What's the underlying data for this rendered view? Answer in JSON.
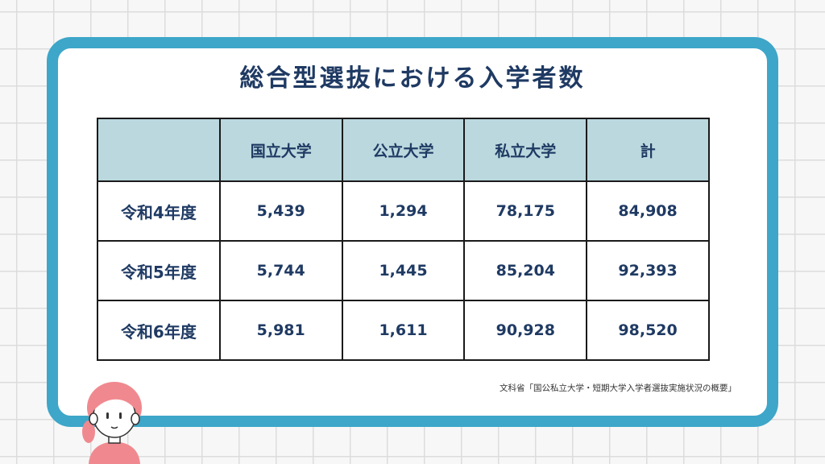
{
  "title": "総合型選抜における入学者数",
  "table": {
    "headers": [
      "",
      "国立大学",
      "公立大学",
      "私立大学",
      "計"
    ],
    "rows": [
      {
        "label": "令和4年度",
        "values": [
          "5,439",
          "1,294",
          "78,175",
          "84,908"
        ]
      },
      {
        "label": "令和5年度",
        "values": [
          "5,744",
          "1,445",
          "85,204",
          "92,393"
        ]
      },
      {
        "label": "令和6年度",
        "values": [
          "5,981",
          "1,611",
          "90,928",
          "98,520"
        ]
      }
    ]
  },
  "source": "文科省「国公私立大学・短期大学入学者選抜実施状況の概要」",
  "colors": {
    "frame": "#3ea6c9",
    "header_fill": "#bad8de",
    "text": "#1f3a63",
    "hair": "#f0898f"
  },
  "icons": {
    "character": "girl-avatar-icon"
  }
}
